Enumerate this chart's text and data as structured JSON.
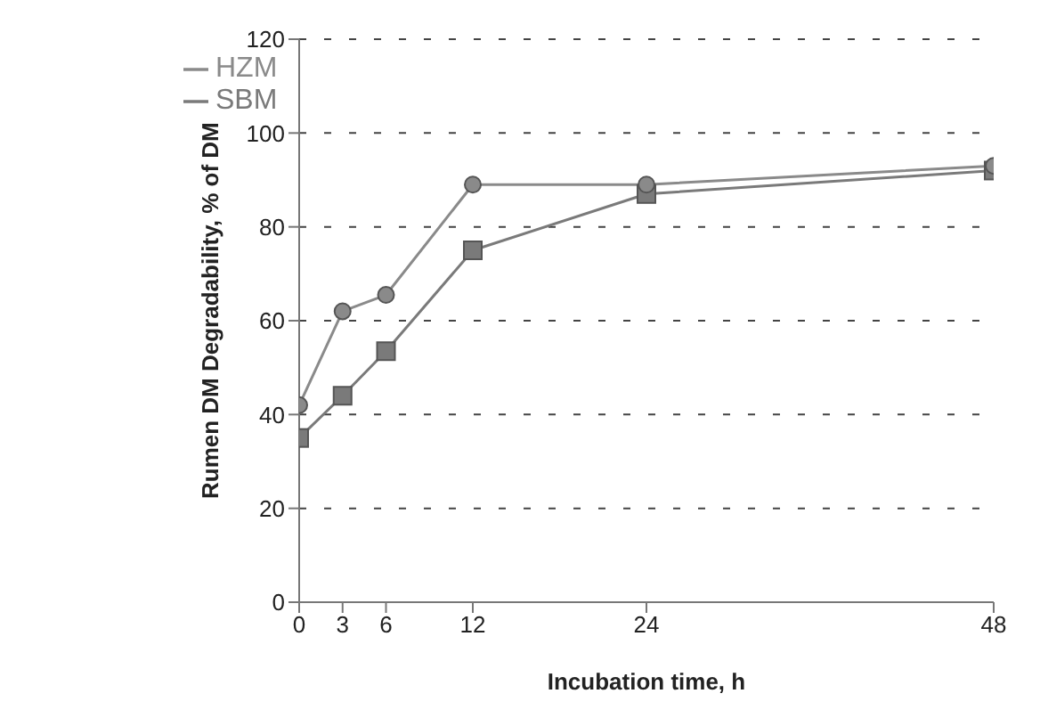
{
  "chart_data": {
    "type": "line",
    "xlabel": "Incubation time, h",
    "ylabel": "Rumen DM Degradability, % of DM",
    "x": [
      0,
      3,
      6,
      12,
      24,
      48
    ],
    "series": [
      {
        "name": "HZM",
        "color": "#8a8a8a",
        "values": [
          42,
          62,
          65.5,
          89,
          89,
          93
        ],
        "marker": "circle"
      },
      {
        "name": "SBM",
        "color": "#7a7a7a",
        "values": [
          35,
          44,
          53.5,
          75,
          87,
          92
        ],
        "marker": "square"
      }
    ],
    "xlim": [
      0,
      48
    ],
    "xticks": [
      0,
      3,
      6,
      12,
      24,
      48
    ],
    "ylim": [
      0,
      120
    ],
    "yticks": [
      0,
      20,
      40,
      60,
      80,
      100,
      120
    ],
    "grid": "y",
    "legend": "top left",
    "line_style": "solid"
  }
}
